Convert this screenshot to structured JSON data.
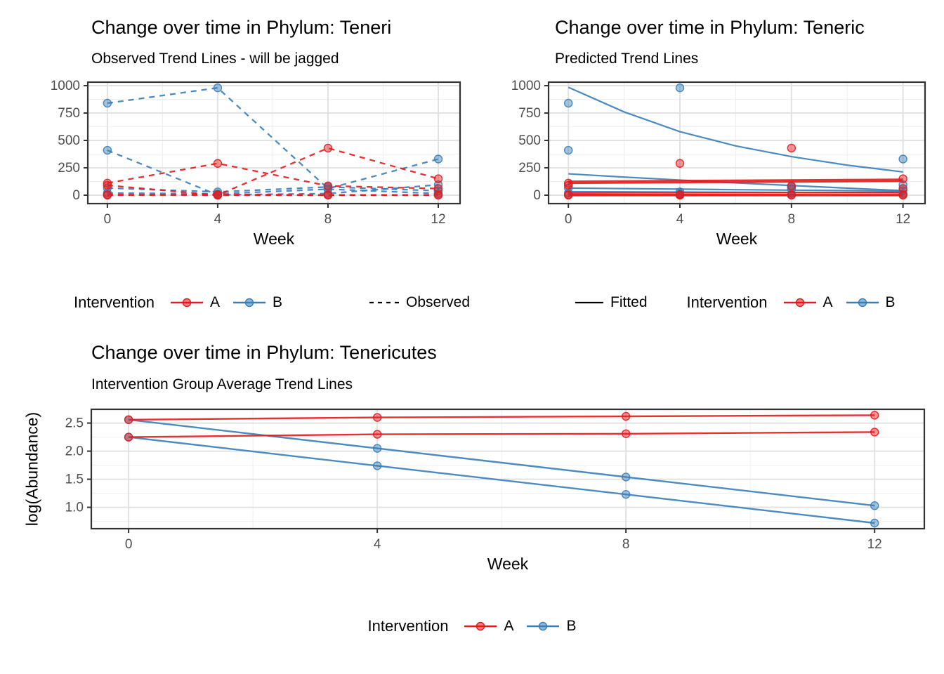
{
  "app": {
    "background": "#FFFFFF"
  },
  "palette": {
    "red": "#E41A1C",
    "blue": "#377EB8",
    "black": "#000000",
    "grid_major": "#E2E2E2",
    "grid_minor": "#F0F0F0",
    "panel_border": "#333333",
    "tick_text": "#4D4D4D",
    "title_text": "#000000"
  },
  "legend_labels": {
    "intervention": "Intervention",
    "a": "A",
    "b": "B",
    "observed": "Observed",
    "fitted": "Fitted"
  },
  "chart_data": [
    {
      "id": "observed",
      "type": "line",
      "title": "Change over time in Phylum: Teneri",
      "subtitle": "Observed Trend Lines - will be jagged",
      "xlabel": "Week",
      "x_ticks": [
        0,
        4,
        8,
        12
      ],
      "x_tick_labels": [
        "0",
        "4",
        "8",
        "12"
      ],
      "y_ticks": [
        0,
        250,
        500,
        750,
        1000
      ],
      "y_tick_labels": [
        "0",
        "250",
        "500",
        "750",
        "1000"
      ],
      "xlim": [
        -0.71,
        12.79
      ],
      "ylim": [
        -77,
        1032
      ],
      "grid": true,
      "legend_position": "bottom",
      "point_radius": 5.5,
      "series": [
        {
          "name": "subject-B1",
          "group": "B",
          "style": "dashed",
          "width": 2.3,
          "points": true,
          "x": [
            0,
            4,
            8,
            12
          ],
          "y": [
            840,
            980,
            60,
            330
          ]
        },
        {
          "name": "subject-B2",
          "group": "B",
          "style": "dashed",
          "width": 2.3,
          "points": true,
          "x": [
            0,
            4,
            8,
            12
          ],
          "y": [
            410,
            2,
            15,
            95
          ]
        },
        {
          "name": "subject-B3",
          "group": "B",
          "style": "dashed",
          "width": 2.3,
          "points": true,
          "x": [
            0,
            4,
            8,
            12
          ],
          "y": [
            65,
            30,
            75,
            40
          ]
        },
        {
          "name": "subject-B4",
          "group": "B",
          "style": "dashed",
          "width": 2.3,
          "points": true,
          "x": [
            0,
            4,
            8,
            12
          ],
          "y": [
            20,
            12,
            55,
            15
          ]
        },
        {
          "name": "subject-A1",
          "group": "A",
          "style": "dashed",
          "width": 2.3,
          "points": true,
          "x": [
            0,
            4,
            8,
            12
          ],
          "y": [
            110,
            290,
            85,
            60
          ]
        },
        {
          "name": "subject-A2",
          "group": "A",
          "style": "dashed",
          "width": 2.3,
          "points": true,
          "x": [
            0,
            4,
            8,
            12
          ],
          "y": [
            90,
            0,
            430,
            150
          ]
        },
        {
          "name": "subject-A3",
          "group": "A",
          "style": "dashed",
          "width": 2.3,
          "points": true,
          "x": [
            0,
            4,
            8,
            12
          ],
          "y": [
            5,
            0,
            0,
            0
          ]
        },
        {
          "name": "subject-A4",
          "group": "A",
          "style": "dashed",
          "width": 2.3,
          "points": true,
          "x": [
            0,
            4,
            8,
            12
          ],
          "y": [
            0,
            5,
            2,
            2
          ]
        }
      ]
    },
    {
      "id": "predicted",
      "type": "line",
      "title": "Change over time in Phylum: Teneric",
      "subtitle": "Predicted Trend Lines",
      "xlabel": "Week",
      "x_ticks": [
        0,
        4,
        8,
        12
      ],
      "x_tick_labels": [
        "0",
        "4",
        "8",
        "12"
      ],
      "y_ticks": [
        0,
        250,
        500,
        750,
        1000
      ],
      "y_tick_labels": [
        "0",
        "250",
        "500",
        "750",
        "1000"
      ],
      "xlim": [
        -0.71,
        12.79
      ],
      "ylim": [
        -77,
        1032
      ],
      "grid": true,
      "legend_position": "bottom",
      "point_radius": 5.5,
      "series": [
        {
          "name": "fit-B1",
          "group": "B",
          "style": "solid",
          "width": 2.2,
          "points": false,
          "x": [
            0,
            2,
            4,
            6,
            8,
            10,
            12
          ],
          "y": [
            985,
            760,
            580,
            450,
            352,
            274,
            212
          ]
        },
        {
          "name": "fit-B2",
          "group": "B",
          "style": "solid",
          "width": 2.2,
          "points": false,
          "x": [
            0,
            2,
            4,
            6,
            8,
            10,
            12
          ],
          "y": [
            195,
            165,
            138,
            112,
            88,
            64,
            42
          ]
        },
        {
          "name": "fit-B3",
          "group": "B",
          "style": "solid",
          "width": 2.2,
          "points": false,
          "x": [
            0,
            2,
            4,
            6,
            8,
            10,
            12
          ],
          "y": [
            65,
            60,
            55,
            50,
            46,
            42,
            38
          ]
        },
        {
          "name": "fit-B4",
          "group": "B",
          "style": "solid",
          "width": 2.2,
          "points": false,
          "x": [
            0,
            12
          ],
          "y": [
            32,
            22
          ]
        },
        {
          "name": "fit-A-main",
          "group": "A",
          "style": "solid",
          "width": 5,
          "points": false,
          "x": [
            0,
            12
          ],
          "y": [
            118,
            136
          ]
        },
        {
          "name": "fit-A2",
          "group": "A",
          "style": "solid",
          "width": 2.2,
          "points": false,
          "x": [
            0,
            12
          ],
          "y": [
            20,
            26
          ]
        },
        {
          "name": "fit-A3",
          "group": "A",
          "style": "solid",
          "width": 2.2,
          "points": false,
          "x": [
            0,
            12
          ],
          "y": [
            5,
            3
          ]
        },
        {
          "name": "fit-A4",
          "group": "A",
          "style": "solid",
          "width": 3.5,
          "points": false,
          "x": [
            0,
            12
          ],
          "y": [
            1,
            1
          ]
        },
        {
          "name": "obs-points-B1",
          "group": "B",
          "style": "none",
          "points": true,
          "x": [
            0,
            4,
            8,
            12
          ],
          "y": [
            840,
            980,
            60,
            330
          ]
        },
        {
          "name": "obs-points-B2",
          "group": "B",
          "style": "none",
          "points": true,
          "x": [
            0,
            4,
            8,
            12
          ],
          "y": [
            410,
            2,
            15,
            95
          ]
        },
        {
          "name": "obs-points-B3",
          "group": "B",
          "style": "none",
          "points": true,
          "x": [
            0,
            4,
            8,
            12
          ],
          "y": [
            65,
            30,
            75,
            40
          ]
        },
        {
          "name": "obs-points-B4",
          "group": "B",
          "style": "none",
          "points": true,
          "x": [
            0,
            4,
            8,
            12
          ],
          "y": [
            20,
            12,
            55,
            15
          ]
        },
        {
          "name": "obs-points-A1",
          "group": "A",
          "style": "none",
          "points": true,
          "x": [
            0,
            4,
            8,
            12
          ],
          "y": [
            110,
            290,
            85,
            60
          ]
        },
        {
          "name": "obs-points-A2",
          "group": "A",
          "style": "none",
          "points": true,
          "x": [
            0,
            4,
            8,
            12
          ],
          "y": [
            90,
            0,
            430,
            150
          ]
        },
        {
          "name": "obs-points-A3",
          "group": "A",
          "style": "none",
          "points": true,
          "x": [
            0,
            4,
            8,
            12
          ],
          "y": [
            5,
            0,
            0,
            0
          ]
        },
        {
          "name": "obs-points-A4",
          "group": "A",
          "style": "none",
          "points": true,
          "x": [
            0,
            4,
            8,
            12
          ],
          "y": [
            0,
            5,
            2,
            2
          ]
        }
      ]
    },
    {
      "id": "average",
      "type": "line",
      "title": "Change over time in Phylum: Tenericutes",
      "subtitle": "Intervention Group Average Trend Lines",
      "xlabel": "Week",
      "ylabel": "log(Abundance)",
      "x_ticks": [
        0,
        4,
        8,
        12
      ],
      "x_tick_labels": [
        "0",
        "4",
        "8",
        "12"
      ],
      "y_ticks": [
        1.0,
        1.5,
        2.0,
        2.5
      ],
      "y_tick_labels": [
        "1.0",
        "1.5",
        "2.0",
        "2.5"
      ],
      "xlim": [
        -0.6,
        12.8
      ],
      "ylim": [
        0.62,
        2.745
      ],
      "grid": true,
      "legend_position": "bottom",
      "point_radius": 5.5,
      "series": [
        {
          "name": "avg-B-upper",
          "group": "B",
          "style": "solid",
          "width": 2.4,
          "points": true,
          "x": [
            0,
            4,
            8,
            12
          ],
          "y": [
            2.56,
            2.05,
            1.54,
            1.03
          ]
        },
        {
          "name": "avg-B-lower",
          "group": "B",
          "style": "solid",
          "width": 2.4,
          "points": true,
          "x": [
            0,
            4,
            8,
            12
          ],
          "y": [
            2.25,
            1.74,
            1.23,
            0.72
          ]
        },
        {
          "name": "avg-A-upper",
          "group": "A",
          "style": "solid",
          "width": 2.4,
          "points": true,
          "x": [
            0,
            4,
            8,
            12
          ],
          "y": [
            2.56,
            2.6,
            2.62,
            2.64
          ]
        },
        {
          "name": "avg-A-lower",
          "group": "A",
          "style": "solid",
          "width": 2.4,
          "points": true,
          "x": [
            0,
            4,
            8,
            12
          ],
          "y": [
            2.25,
            2.3,
            2.31,
            2.34
          ]
        }
      ]
    }
  ]
}
